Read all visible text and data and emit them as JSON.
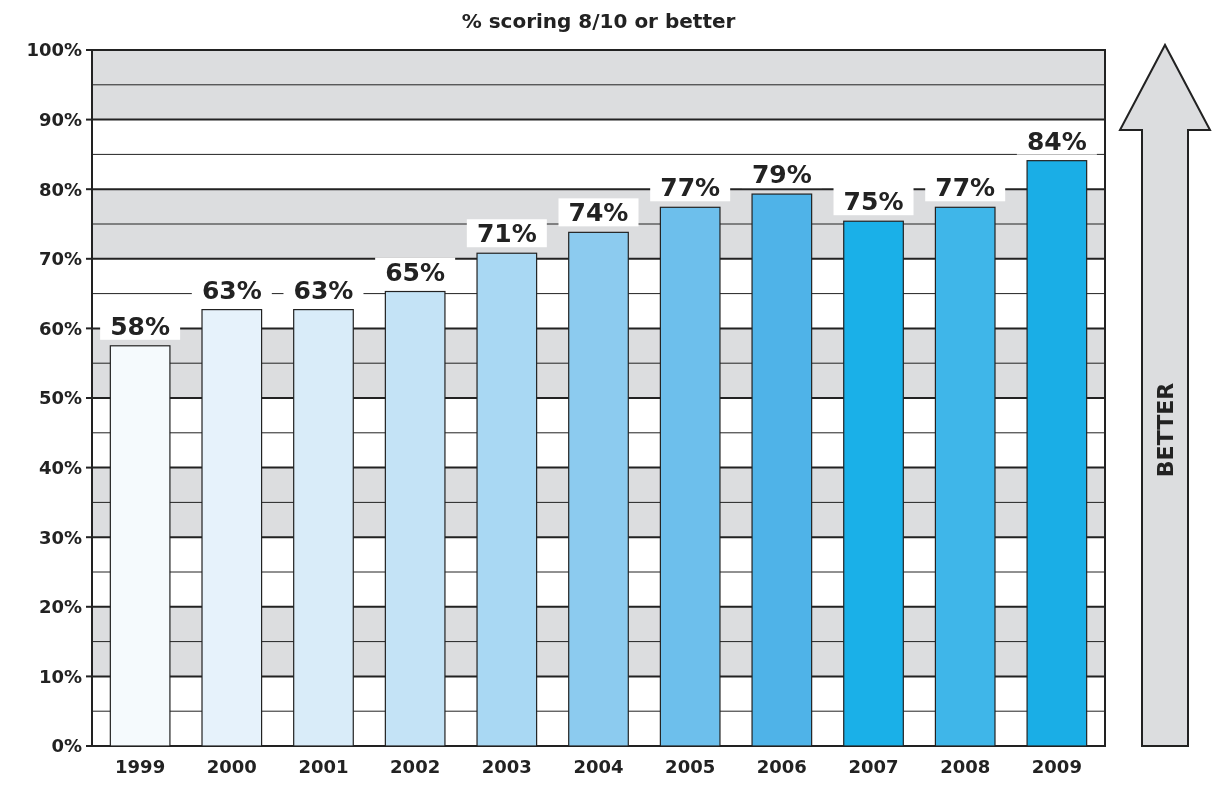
{
  "chart_data": {
    "type": "bar",
    "title": "% scoring 8/10 or better",
    "categories": [
      "1999",
      "2000",
      "2001",
      "2002",
      "2003",
      "2004",
      "2005",
      "2006",
      "2007",
      "2008",
      "2009"
    ],
    "values": [
      57.5,
      62.7,
      62.7,
      65.3,
      70.8,
      73.8,
      77.4,
      79.3,
      75.4,
      77.4,
      84.1
    ],
    "value_labels": [
      "58%",
      "63%",
      "63%",
      "65%",
      "71%",
      "74%",
      "77%",
      "79%",
      "75%",
      "77%",
      "84%"
    ],
    "colors": [
      "#f5fafd",
      "#e6f2fb",
      "#d9ecf9",
      "#c4e3f6",
      "#a9d8f3",
      "#8ccbef",
      "#6dbfec",
      "#4fb3e8",
      "#1ab0e8",
      "#3fb6e9",
      "#1aaee6"
    ],
    "ylim": [
      0,
      100
    ],
    "yticks": [
      {
        "value": 0,
        "label": "0%"
      },
      {
        "value": 10,
        "label": "10%"
      },
      {
        "value": 20,
        "label": "20%"
      },
      {
        "value": 30,
        "label": "30%"
      },
      {
        "value": 40,
        "label": "40%"
      },
      {
        "value": 50,
        "label": "50%"
      },
      {
        "value": 60,
        "label": "60%"
      },
      {
        "value": 70,
        "label": "70%"
      },
      {
        "value": 80,
        "label": "80%"
      },
      {
        "value": 90,
        "label": "90%"
      },
      {
        "value": 100,
        "label": "100%"
      }
    ],
    "grid": "y",
    "annotations": [
      "BETTER"
    ]
  }
}
